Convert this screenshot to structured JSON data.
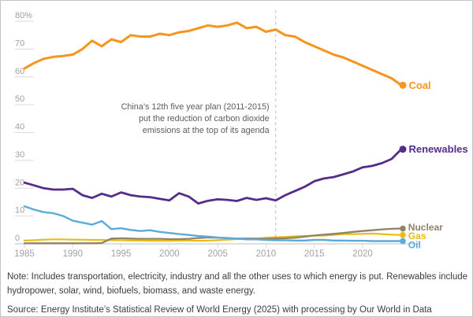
{
  "chart": {
    "y_axis": {
      "ticks": [
        {
          "v": 80,
          "label": "80%"
        },
        {
          "v": 70,
          "label": "70"
        },
        {
          "v": 60,
          "label": "60"
        },
        {
          "v": 50,
          "label": "50"
        },
        {
          "v": 40,
          "label": "40"
        },
        {
          "v": 30,
          "label": "30"
        },
        {
          "v": 20,
          "label": "20"
        },
        {
          "v": 10,
          "label": "10"
        },
        {
          "v": 0,
          "label": "0"
        }
      ]
    },
    "x_axis": {
      "ticks": [
        1985,
        1990,
        1995,
        2000,
        2005,
        2010,
        2015,
        2020
      ]
    }
  },
  "chart_data": {
    "type": "line",
    "title": "",
    "xlabel": "",
    "ylabel": "",
    "ylim": [
      0,
      80
    ],
    "xlim": [
      1985,
      2024
    ],
    "grid": "short y tick marks on left only, baseline at 0",
    "legend_position": "direct labels with dots at line ends (right side)",
    "x": [
      1985,
      1986,
      1987,
      1988,
      1989,
      1990,
      1991,
      1992,
      1993,
      1994,
      1995,
      1996,
      1997,
      1998,
      1999,
      2000,
      2001,
      2002,
      2003,
      2004,
      2005,
      2006,
      2007,
      2008,
      2009,
      2010,
      2011,
      2012,
      2013,
      2014,
      2015,
      2016,
      2017,
      2018,
      2019,
      2020,
      2021,
      2022,
      2023,
      2024
    ],
    "series": [
      {
        "name": "Coal",
        "label": "Coal",
        "color": "#F6941E",
        "z": 5,
        "values": [
          63,
          65,
          66.5,
          67.2,
          67.5,
          68,
          70,
          73,
          71,
          73.5,
          72.5,
          75,
          74.5,
          74.5,
          75.5,
          75,
          76,
          76.5,
          77.5,
          78.5,
          78,
          78.5,
          79.5,
          77.5,
          78,
          76.2,
          77,
          75,
          74.5,
          72.5,
          71,
          69.5,
          68,
          67,
          65.5,
          64,
          62.5,
          61,
          59.5,
          57
        ]
      },
      {
        "name": "Renewables",
        "label": "Renewables",
        "color": "#542C8C",
        "z": 4,
        "values": [
          22,
          21,
          20,
          19.5,
          19.5,
          19.8,
          17.5,
          16.5,
          18,
          17,
          18.5,
          17.5,
          17,
          16.8,
          16.2,
          15.6,
          18.2,
          17,
          14.5,
          15.5,
          16,
          15.8,
          15.4,
          16.5,
          15.8,
          16.4,
          15.6,
          17.5,
          19,
          20.5,
          22.5,
          23.5,
          24,
          25,
          26,
          27.5,
          28,
          29,
          30.5,
          34
        ]
      },
      {
        "name": "Nuclear",
        "label": "Nuclear",
        "color": "#8F8368",
        "z": 2,
        "values": [
          0.2,
          0.2,
          0.2,
          0.2,
          0.2,
          0.2,
          0.2,
          0.2,
          0.3,
          1.9,
          2,
          1.9,
          1.8,
          1.8,
          1.8,
          1.7,
          1.7,
          1.8,
          2.1,
          2.3,
          2.2,
          2,
          1.9,
          1.9,
          1.9,
          1.8,
          1.9,
          2,
          2.2,
          2.6,
          3,
          3.3,
          3.6,
          3.9,
          4.3,
          4.6,
          4.9,
          5.2,
          5.4,
          5.5
        ]
      },
      {
        "name": "Gas",
        "label": "Gas",
        "color": "#E8BB18",
        "z": 1,
        "values": [
          1.2,
          1.3,
          1.5,
          1.6,
          1.6,
          1.5,
          1.5,
          1.4,
          1.4,
          1.3,
          1.3,
          1.2,
          1.2,
          1.1,
          1.1,
          1.1,
          1.2,
          1.2,
          1.1,
          1.2,
          1.3,
          1.5,
          1.7,
          1.8,
          1.9,
          2.2,
          2.4,
          2.5,
          2.7,
          2.8,
          2.9,
          3,
          3.2,
          3.5,
          3.5,
          3.6,
          3.7,
          3.5,
          3.3,
          3.2
        ]
      },
      {
        "name": "Oil",
        "label": "Oil",
        "color": "#5CAAD9",
        "z": 3,
        "values": [
          13.5,
          12.3,
          11.4,
          11,
          10,
          8.3,
          7.6,
          6.9,
          8.2,
          5.3,
          5.6,
          5,
          4.6,
          4.9,
          4.3,
          3.9,
          3.5,
          3.2,
          2.8,
          2.6,
          2.3,
          2.1,
          1.9,
          1.6,
          1.6,
          1.4,
          1.3,
          1.3,
          1.2,
          1.2,
          1.4,
          1.4,
          1.2,
          1.2,
          1.1,
          1.1,
          1,
          1,
          1,
          1
        ]
      }
    ],
    "annotations": [
      {
        "type": "vline",
        "x": 2011,
        "style": "dashed",
        "color": "#cccccc"
      },
      {
        "type": "text",
        "align": "right",
        "lines": [
          "China’s 12th five year plan (2011-2015)",
          "put the reduction of carbon dioxide",
          "emissions at the top of its agenda"
        ]
      }
    ]
  },
  "colors": {
    "coal": "#F6941E",
    "renewables": "#542C8C",
    "nuclear": "#8F8368",
    "gas": "#E8BB18",
    "oil": "#5CAAD9",
    "axis_text": "#a1a1a1",
    "tick_line": "#d9d9d9",
    "baseline": "#bfbfbf",
    "annotation_text": "#5c5c5c"
  },
  "notes": {
    "note": "Note: Includes transportation, electricity, industry and all the other uses to which energy is put. Renewables include hydropower, solar, wind, biofuels, biomass, and waste energy.",
    "source": "Source: Energy Institute’s Statistical Review of World Energy (2025) with processing by Our World in Data"
  }
}
